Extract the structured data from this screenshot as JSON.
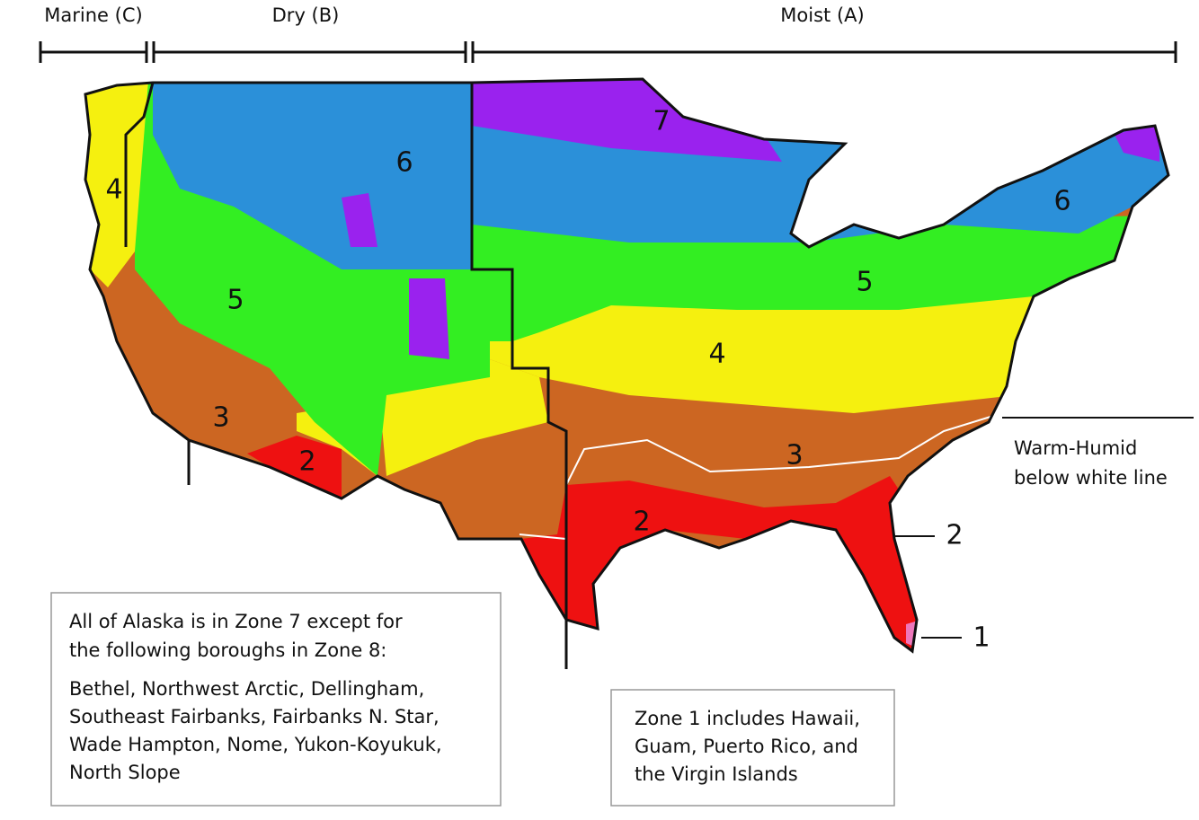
{
  "moisture_regions": [
    {
      "label": "Marine (C)"
    },
    {
      "label": "Dry (B)"
    },
    {
      "label": "Moist (A)"
    }
  ],
  "zone_labels": [
    {
      "label": "4"
    },
    {
      "label": "5"
    },
    {
      "label": "6"
    },
    {
      "label": "7"
    },
    {
      "label": "6"
    },
    {
      "label": "5"
    },
    {
      "label": "4"
    },
    {
      "label": "3"
    },
    {
      "label": "2"
    },
    {
      "label": "3"
    },
    {
      "label": "2"
    },
    {
      "label": "2"
    },
    {
      "label": "1"
    }
  ],
  "warm_humid_note": [
    "Warm-Humid",
    "below white line"
  ],
  "alaska_note": {
    "intro": [
      "All of Alaska is in Zone 7 except for",
      "the following boroughs in Zone 8:"
    ],
    "boroughs": [
      "Bethel, Northwest Arctic, Dellingham,",
      "Southeast Fairbanks, Fairbanks N. Star,",
      "Wade Hampton, Nome, Yukon-Koyukuk,",
      "North Slope"
    ]
  },
  "zone1_note": [
    "Zone 1 includes Hawaii,",
    "Guam, Puerto Rico, and",
    "the Virgin Islands"
  ]
}
